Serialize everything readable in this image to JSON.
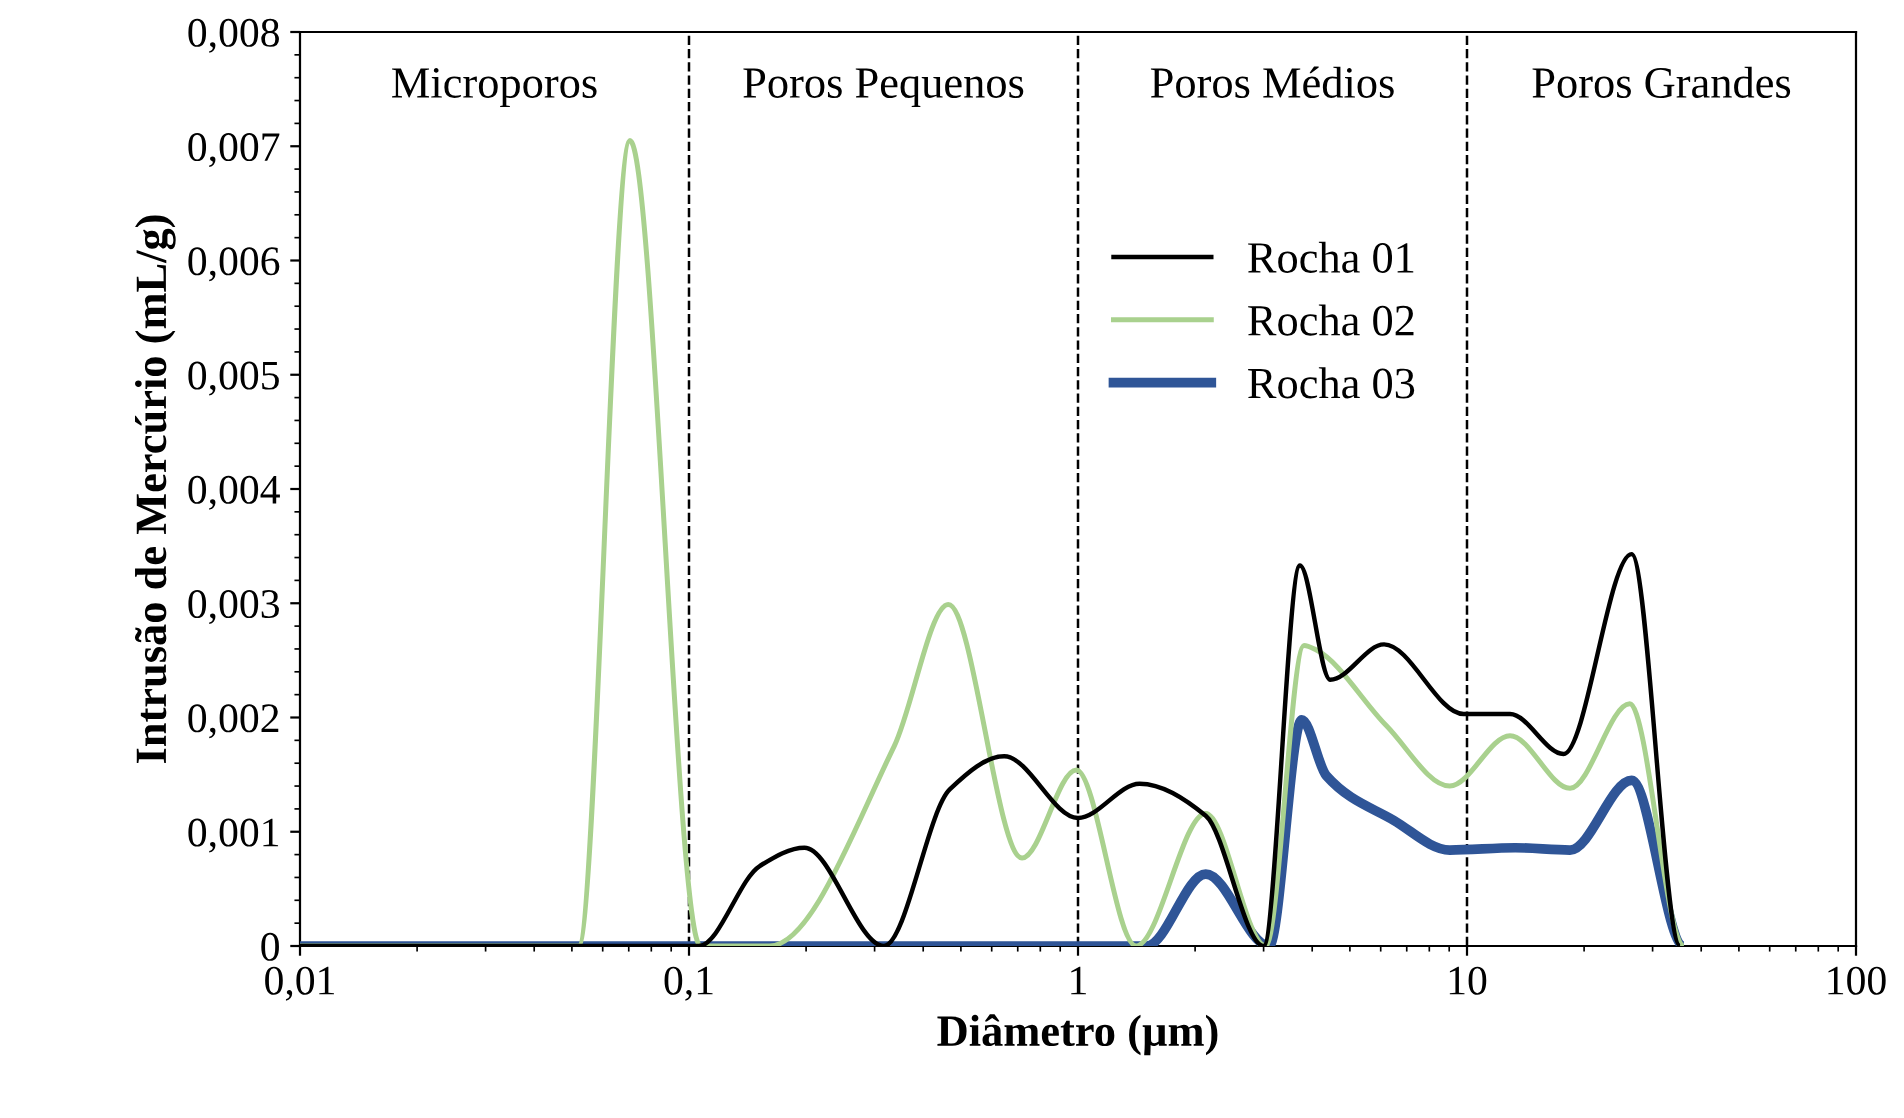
{
  "chart_data": {
    "type": "line",
    "xlabel": "Diâmetro (µm)",
    "ylabel": "Intrusão de Mercúrio (mL/g)",
    "log": "x",
    "xlim": [
      0.01,
      100
    ],
    "xticks": [
      {
        "value": 0.01,
        "label": "0,01"
      },
      {
        "value": 0.1,
        "label": "0,1"
      },
      1,
      10,
      100
    ],
    "ylim": [
      0,
      0.008
    ],
    "yticks": [
      0,
      {
        "value": 0.001,
        "label": "0,001"
      },
      {
        "value": 0.002,
        "label": "0,002"
      },
      {
        "value": 0.003,
        "label": "0,003"
      },
      {
        "value": 0.004,
        "label": "0,004"
      },
      {
        "value": 0.005,
        "label": "0,005"
      },
      {
        "value": 0.006,
        "label": "0,006"
      },
      {
        "value": 0.007,
        "label": "0,007"
      },
      {
        "value": 0.008,
        "label": "0,008"
      }
    ],
    "grid": false,
    "legend": "center",
    "marker": "none",
    "line_style": "solid",
    "ref_lines": [
      {
        "axis": "x",
        "value": 0.1,
        "color": "#000000",
        "line_style": "dashed"
      },
      {
        "axis": "x",
        "value": 1,
        "color": "#000000",
        "line_style": "dashed"
      },
      {
        "axis": "x",
        "value": 10,
        "color": "#000000",
        "line_style": "dashed"
      }
    ],
    "annotations": [
      "Microporos",
      "Poros Pequenos",
      "Poros Médios",
      "Poros Grandes"
    ],
    "series": [
      {
        "name": "Rocha 01",
        "color": "#000000",
        "x": [
          0.01,
          0.106,
          0.152,
          0.198,
          0.317,
          0.468,
          0.646,
          1.0,
          1.44,
          2.13,
          3.0,
          3.72,
          4.45,
          6.12,
          9.8,
          12.9,
          17.7,
          26.5,
          35.3
        ],
        "values": [
          0,
          0,
          0.0007,
          0.00086,
          0,
          0.00137,
          0.00166,
          0.00112,
          0.00142,
          0.00114,
          0,
          0.00333,
          0.00233,
          0.00264,
          0.00203,
          0.00203,
          0.00168,
          0.00343,
          0
        ]
      },
      {
        "name": "Rocha 02",
        "color": "#a9d18e",
        "x": [
          0.01,
          0.052,
          0.0705,
          0.107,
          0.161,
          0.337,
          0.464,
          0.718,
          0.99,
          1.41,
          2.13,
          3.04,
          3.81,
          4.1,
          6.2,
          9.03,
          12.9,
          18.4,
          26.2,
          36.1
        ],
        "values": [
          0,
          0,
          0.00705,
          0,
          0,
          0.00175,
          0.00299,
          0.00077,
          0.00154,
          0,
          0.00116,
          0,
          0.00263,
          0.00259,
          0.00193,
          0.0014,
          0.00184,
          0.00138,
          0.00212,
          0
        ]
      },
      {
        "name": "Rocha 03",
        "color": "#2f5597",
        "x": [
          0.01,
          1.5,
          2.13,
          3.1,
          3.76,
          4.35,
          6.48,
          9.03,
          13.3,
          18.4,
          26.5,
          36.1
        ],
        "values": [
          0,
          0,
          0.00063,
          0,
          0.00198,
          0.00149,
          0.0011,
          0.00084,
          0.00086,
          0.00084,
          0.00145,
          0
        ]
      }
    ]
  }
}
